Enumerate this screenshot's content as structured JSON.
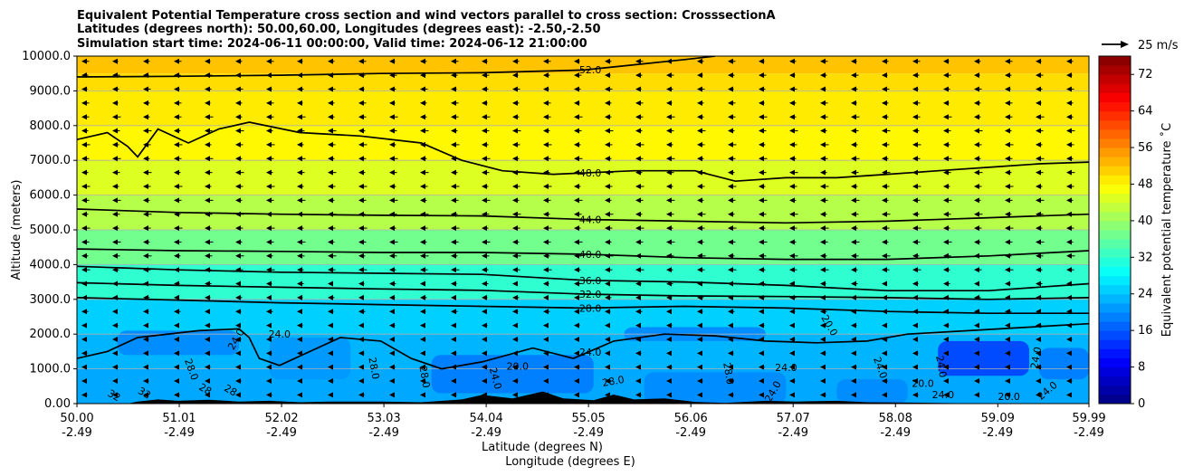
{
  "chart_data": {
    "type": "heatmap",
    "title_lines": [
      "Equivalent Potential Temperature cross section and wind vectors parallel to cross section: CrosssectionA",
      "Latitudes (degrees north): 50.00,60.00, Longitudes (degrees east): -2.50,-2.50",
      "Simulation start time: 2024-06-11 00:00:00, Valid time: 2024-06-12 21:00:00"
    ],
    "ylabel": "Altitude (meters)",
    "xlabel_lines": [
      "Latitude (degrees N)",
      "Longitude (degrees E)"
    ],
    "ylim": [
      0,
      10000
    ],
    "y_ticks": [
      0,
      1000,
      2000,
      3000,
      4000,
      5000,
      6000,
      7000,
      8000,
      9000,
      10000
    ],
    "y_tick_labels": [
      "0.00",
      "1000.0",
      "2000.0",
      "3000.0",
      "4000.0",
      "5000.0",
      "6000.0",
      "7000.0",
      "8000.0",
      "9000.0",
      "10000.0"
    ],
    "xlim": [
      50.0,
      59.99
    ],
    "x_ticks": [
      {
        "lat": 50.0,
        "lat_label": "50.00",
        "lon_label": "-2.49"
      },
      {
        "lat": 51.01,
        "lat_label": "51.01",
        "lon_label": "-2.49"
      },
      {
        "lat": 52.02,
        "lat_label": "52.02",
        "lon_label": "-2.49"
      },
      {
        "lat": 53.03,
        "lat_label": "53.03",
        "lon_label": "-2.49"
      },
      {
        "lat": 54.04,
        "lat_label": "54.04",
        "lon_label": "-2.49"
      },
      {
        "lat": 55.05,
        "lat_label": "55.05",
        "lon_label": "-2.49"
      },
      {
        "lat": 56.06,
        "lat_label": "56.06",
        "lon_label": "-2.49"
      },
      {
        "lat": 57.07,
        "lat_label": "57.07",
        "lon_label": "-2.49"
      },
      {
        "lat": 58.08,
        "lat_label": "58.08",
        "lon_label": "-2.49"
      },
      {
        "lat": 59.09,
        "lat_label": "59.09",
        "lon_label": "-2.49"
      },
      {
        "lat": 59.99,
        "lat_label": "59.99",
        "lon_label": "-2.49"
      }
    ],
    "grid": "horizontal",
    "colorbar": {
      "label": "Equivalent potential temperature ˚C",
      "range": [
        0,
        76
      ],
      "ticks": [
        0,
        8,
        16,
        24,
        32,
        40,
        48,
        56,
        64,
        72
      ]
    },
    "layers": [
      {
        "alt": 0,
        "theta": 22
      },
      {
        "alt": 1000,
        "theta": 23
      },
      {
        "alt": 2000,
        "theta": 25
      },
      {
        "alt": 3000,
        "theta": 32
      },
      {
        "alt": 4000,
        "theta": 37
      },
      {
        "alt": 5000,
        "theta": 42
      },
      {
        "alt": 6000,
        "theta": 45
      },
      {
        "alt": 7000,
        "theta": 48
      },
      {
        "alt": 8000,
        "theta": 49
      },
      {
        "alt": 9000,
        "theta": 50
      },
      {
        "alt": 9500,
        "theta": 52
      },
      {
        "alt": 10000,
        "theta": 54
      }
    ],
    "low_level_patches": [
      {
        "lat_min": 50.4,
        "lat_max": 51.6,
        "alt_min": 1400,
        "alt_max": 2100,
        "theta": 20
      },
      {
        "lat_min": 51.9,
        "lat_max": 52.7,
        "alt_min": 700,
        "alt_max": 1900,
        "theta": 21
      },
      {
        "lat_min": 53.5,
        "lat_max": 55.1,
        "alt_min": 300,
        "alt_max": 1400,
        "theta": 19
      },
      {
        "lat_min": 55.4,
        "lat_max": 56.8,
        "alt_min": 1800,
        "alt_max": 2200,
        "theta": 20
      },
      {
        "lat_min": 55.6,
        "lat_max": 57.0,
        "alt_min": 0,
        "alt_max": 900,
        "theta": 20
      },
      {
        "lat_min": 57.5,
        "lat_max": 58.2,
        "alt_min": 0,
        "alt_max": 700,
        "theta": 20
      },
      {
        "lat_min": 58.5,
        "lat_max": 59.4,
        "alt_min": 800,
        "alt_max": 1800,
        "theta": 15
      },
      {
        "lat_min": 59.5,
        "lat_max": 59.99,
        "alt_min": 700,
        "alt_max": 1600,
        "theta": 19
      }
    ],
    "contours": [
      {
        "label": "52.0",
        "points": [
          [
            50.0,
            9400
          ],
          [
            51.0,
            9420
          ],
          [
            52.0,
            9450
          ],
          [
            53.0,
            9500
          ],
          [
            54.0,
            9520
          ],
          [
            55.0,
            9600
          ],
          [
            55.5,
            9750
          ],
          [
            56.0,
            9900
          ],
          [
            56.3,
            10000
          ]
        ]
      },
      {
        "label": "48.0",
        "points": [
          [
            50.0,
            7600
          ],
          [
            50.3,
            7800
          ],
          [
            50.5,
            7400
          ],
          [
            50.6,
            7100
          ],
          [
            50.8,
            7900
          ],
          [
            51.1,
            7500
          ],
          [
            51.4,
            7900
          ],
          [
            51.7,
            8100
          ],
          [
            52.2,
            7800
          ],
          [
            52.8,
            7700
          ],
          [
            53.4,
            7500
          ],
          [
            53.8,
            7000
          ],
          [
            54.2,
            6700
          ],
          [
            54.7,
            6600
          ],
          [
            55.5,
            6700
          ],
          [
            56.1,
            6700
          ],
          [
            56.5,
            6400
          ],
          [
            57.0,
            6500
          ],
          [
            57.5,
            6500
          ],
          [
            58.0,
            6600
          ],
          [
            58.5,
            6700
          ],
          [
            59.0,
            6800
          ],
          [
            59.5,
            6900
          ],
          [
            59.99,
            6950
          ]
        ]
      },
      {
        "label": "44.0",
        "points": [
          [
            50.0,
            5600
          ],
          [
            51.0,
            5500
          ],
          [
            52.0,
            5450
          ],
          [
            53.0,
            5420
          ],
          [
            54.0,
            5400
          ],
          [
            55.0,
            5300
          ],
          [
            56.0,
            5250
          ],
          [
            57.0,
            5200
          ],
          [
            58.0,
            5250
          ],
          [
            59.0,
            5350
          ],
          [
            59.99,
            5450
          ]
        ]
      },
      {
        "label": "40.0",
        "points": [
          [
            50.0,
            4450
          ],
          [
            51.0,
            4400
          ],
          [
            52.0,
            4380
          ],
          [
            53.0,
            4350
          ],
          [
            54.0,
            4350
          ],
          [
            55.0,
            4300
          ],
          [
            56.0,
            4200
          ],
          [
            57.0,
            4150
          ],
          [
            58.0,
            4150
          ],
          [
            59.0,
            4250
          ],
          [
            59.99,
            4400
          ]
        ]
      },
      {
        "label": "36.0",
        "points": [
          [
            50.0,
            3950
          ],
          [
            51.0,
            3850
          ],
          [
            52.0,
            3780
          ],
          [
            53.0,
            3750
          ],
          [
            54.0,
            3720
          ],
          [
            55.0,
            3550
          ],
          [
            56.0,
            3500
          ],
          [
            57.0,
            3400
          ],
          [
            58.0,
            3250
          ],
          [
            59.0,
            3250
          ],
          [
            59.99,
            3450
          ]
        ]
      },
      {
        "label": "32.0",
        "points": [
          [
            50.0,
            3480
          ],
          [
            51.0,
            3400
          ],
          [
            52.0,
            3350
          ],
          [
            53.0,
            3300
          ],
          [
            54.0,
            3260
          ],
          [
            55.0,
            3150
          ],
          [
            56.0,
            3100
          ],
          [
            57.0,
            3080
          ],
          [
            58.0,
            3050
          ],
          [
            59.0,
            3000
          ],
          [
            59.99,
            3050
          ]
        ]
      },
      {
        "label": "28.0",
        "points": [
          [
            50.0,
            3050
          ],
          [
            51.0,
            2980
          ],
          [
            52.0,
            2900
          ],
          [
            53.0,
            2850
          ],
          [
            54.0,
            2800
          ],
          [
            55.0,
            2750
          ],
          [
            56.0,
            2800
          ],
          [
            57.0,
            2750
          ],
          [
            58.0,
            2650
          ],
          [
            59.0,
            2600
          ],
          [
            59.99,
            2600
          ]
        ]
      },
      {
        "label": "24.0",
        "points": [
          [
            50.0,
            1300
          ],
          [
            50.3,
            1500
          ],
          [
            50.6,
            1900
          ],
          [
            51.2,
            2100
          ],
          [
            51.6,
            2150
          ],
          [
            51.7,
            1900
          ],
          [
            51.8,
            1300
          ],
          [
            52.0,
            1100
          ],
          [
            52.3,
            1500
          ],
          [
            52.6,
            1900
          ],
          [
            53.0,
            1800
          ],
          [
            53.3,
            1300
          ],
          [
            53.6,
            1000
          ],
          [
            54.0,
            1200
          ],
          [
            54.5,
            1600
          ],
          [
            54.9,
            1300
          ],
          [
            55.3,
            1800
          ],
          [
            55.8,
            2000
          ],
          [
            56.3,
            1950
          ],
          [
            56.8,
            1800
          ],
          [
            57.3,
            1750
          ],
          [
            57.8,
            1800
          ],
          [
            58.2,
            2000
          ],
          [
            58.8,
            2100
          ],
          [
            59.4,
            2200
          ],
          [
            59.99,
            2300
          ]
        ]
      }
    ],
    "extra_contour_labels": [
      "24.0",
      "24.0",
      "28.0",
      "28.0",
      "28.0",
      "24.0",
      "20.0",
      "28.0",
      "28.0",
      "24.0",
      "24.0",
      "20.0",
      "24.0",
      "24.0",
      "24.0",
      "20.0",
      "24.0",
      "24.0",
      "20.0",
      "32",
      "32",
      "28",
      "28"
    ],
    "wind_vector_key": {
      "magnitude": 25,
      "unit_label": "25 m/s"
    },
    "wind_pattern": "mostly westward (right to left) along the cross section; stronger aloft (4000-8000 m), weak near surface"
  }
}
